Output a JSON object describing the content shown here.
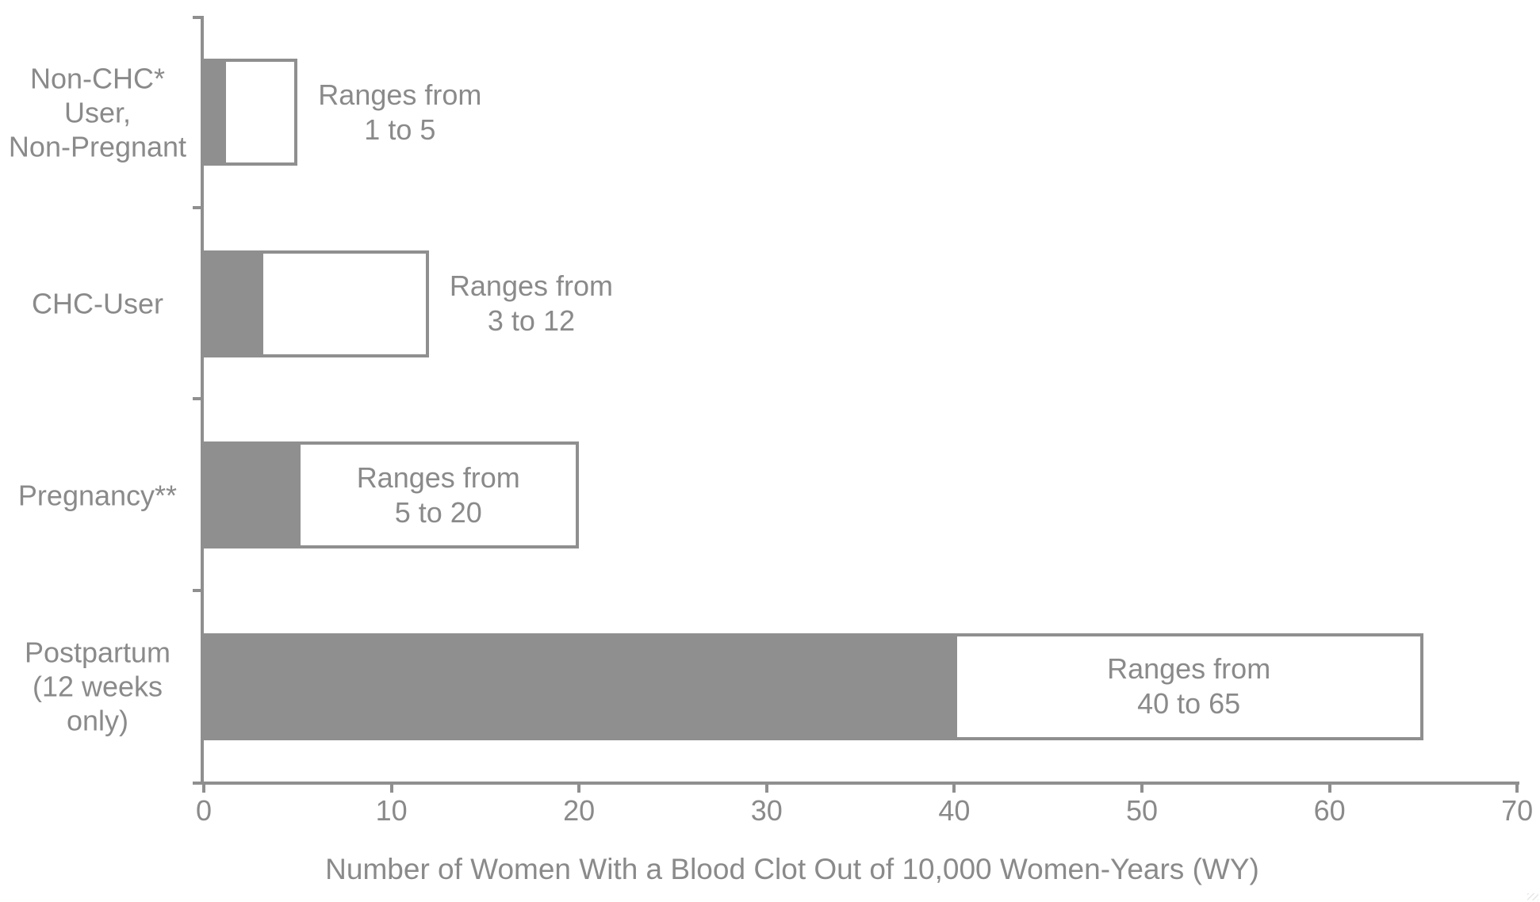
{
  "chart_data": {
    "type": "bar",
    "orientation": "horizontal",
    "title": "",
    "xlabel": "Number of Women With a Blood Clot Out of 10,000 Women-Years (WY)",
    "ylabel": "",
    "xlim": [
      0,
      70
    ],
    "xticks": [
      "0",
      "10",
      "20",
      "30",
      "40",
      "50",
      "60",
      "70"
    ],
    "xtick_values": [
      0,
      10,
      20,
      30,
      40,
      50,
      60,
      70
    ],
    "grid": false,
    "legend_position": "none",
    "bar_style": "solid gray bar from 0 to range minimum; white outlined box spanning range minimum to range maximum",
    "colors": {
      "bar_fill": "#8f8f8f",
      "range_box_fill": "#ffffff",
      "range_box_border": "#8f8f8f",
      "axis": "#8f8f8f",
      "text": "#8a8a8a",
      "background": "#ffffff"
    },
    "rows": [
      {
        "category": "Non-CHC* User, Non-Pregnant",
        "category_lines": [
          "Non-CHC*",
          "User,",
          "Non-Pregnant"
        ],
        "min": 1,
        "max": 5,
        "annotation_lines": [
          "Ranges from",
          "1 to 5"
        ],
        "annotation_placement": "right-of-box"
      },
      {
        "category": "CHC-User",
        "category_lines": [
          "CHC-User"
        ],
        "min": 3,
        "max": 12,
        "annotation_lines": [
          "Ranges from",
          "3 to 12"
        ],
        "annotation_placement": "right-of-box"
      },
      {
        "category": "Pregnancy**",
        "category_lines": [
          "Pregnancy**"
        ],
        "min": 5,
        "max": 20,
        "annotation_lines": [
          "Ranges from",
          "5 to 20"
        ],
        "annotation_placement": "inside-box"
      },
      {
        "category": "Postpartum (12 weeks only)",
        "category_lines": [
          "Postpartum",
          "(12 weeks",
          "only)"
        ],
        "min": 40,
        "max": 65,
        "annotation_lines": [
          "Ranges from",
          "40 to 65"
        ],
        "annotation_placement": "inside-box"
      }
    ]
  }
}
